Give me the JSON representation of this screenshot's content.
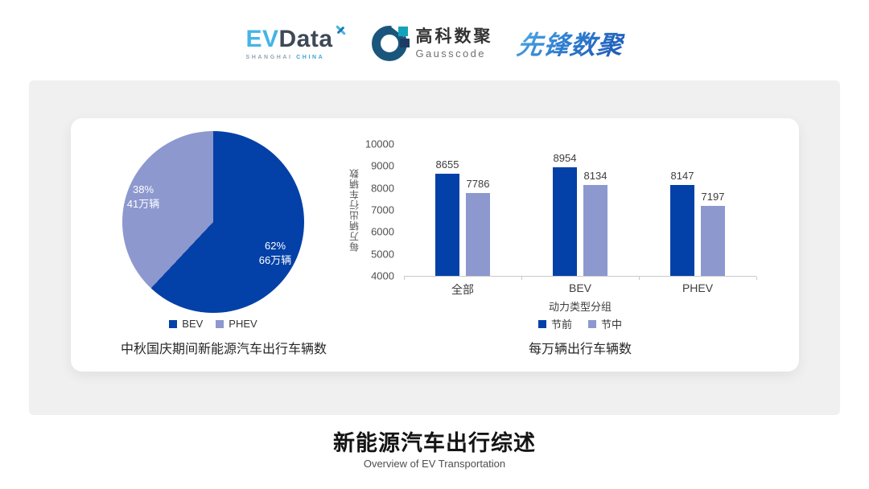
{
  "header": {
    "evdata": {
      "ev": "EV",
      "data": "Data",
      "sub_left": "SHANGHAI ",
      "sub_right": "CHINA"
    },
    "gausscode": {
      "cn": "高科数聚",
      "en": "Gausscode"
    },
    "xianfeng": {
      "text": "先锋数聚"
    }
  },
  "colors": {
    "primary": "#0341a8",
    "secondary": "#8d98cf",
    "axis": "#c9c9c9"
  },
  "chart_data": [
    {
      "type": "pie",
      "title": "中秋国庆期间新能源汽车出行车辆数",
      "labels": [
        "BEV",
        "PHEV"
      ],
      "values": [
        62,
        38
      ],
      "colors": [
        "#0341a8",
        "#8d98cf"
      ],
      "value_labels": [
        {
          "pct": "62%",
          "count": "66万辆"
        },
        {
          "pct": "38%",
          "count": "41万辆"
        }
      ],
      "legend_position": "bottom",
      "start_angle_deg": 0
    },
    {
      "type": "bar",
      "title": "每万辆出行车辆数",
      "categories": [
        "全部",
        "BEV",
        "PHEV"
      ],
      "series": [
        {
          "name": "节前",
          "color": "#0341a8",
          "values": [
            8655,
            8954,
            8147
          ]
        },
        {
          "name": "节中",
          "color": "#8d98cf",
          "values": [
            7786,
            8134,
            7197
          ]
        }
      ],
      "xlabel": "动力类型分组",
      "ylabel": "每万辆出行车辆数",
      "ylim": [
        4000,
        10000
      ],
      "ytick_step": 1000,
      "grid": false,
      "legend_position": "bottom"
    }
  ],
  "footer": {
    "title": "新能源汽车出行综述",
    "subtitle": "Overview of EV Transportation"
  }
}
